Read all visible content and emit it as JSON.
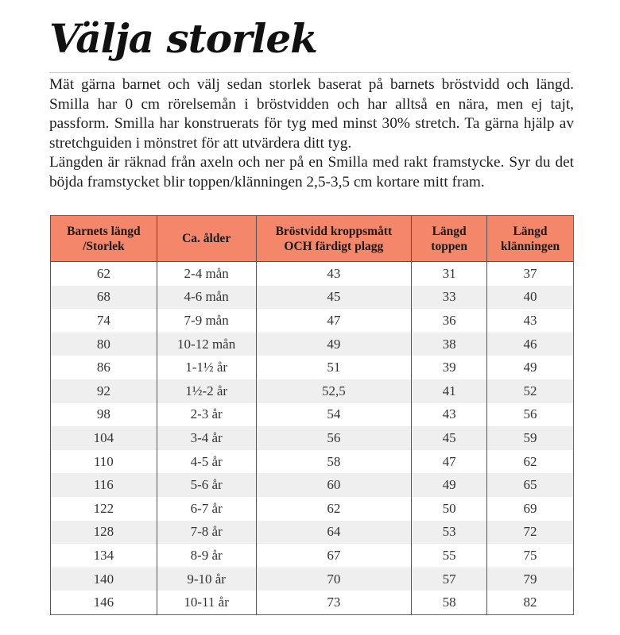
{
  "title": "Välja storlek",
  "intro": [
    "Mät gärna barnet och välj sedan storlek baserat på barnets bröstvidd och längd. Smilla har 0 cm rörelsemån i bröstvidden och har alltså en nära, men ej tajt, passform. Smilla har konstruerats för tyg med minst 30% stretch. Ta gärna hjälp av stretchguiden i mönstret för att utvärdera ditt tyg.",
    "Längden är räknad från axeln och ner på en Smilla med rakt framstycke. Syr du det böjda framstycket blir toppen/klänningen 2,5-3,5 cm kortare mitt fram."
  ],
  "colors": {
    "header_bg": "#f4866a",
    "stripe_bg": "#efefef"
  },
  "table": {
    "headers": [
      [
        "Barnets längd",
        "/Storlek"
      ],
      [
        "Ca. ålder",
        ""
      ],
      [
        "Bröstvidd kroppsmått",
        "OCH färdigt plagg"
      ],
      [
        "Längd",
        "toppen"
      ],
      [
        "Längd",
        "klänningen"
      ]
    ],
    "rows": [
      [
        "62",
        "2-4 mån",
        "43",
        "31",
        "37"
      ],
      [
        "68",
        "4-6 mån",
        "45",
        "33",
        "40"
      ],
      [
        "74",
        "7-9 mån",
        "47",
        "36",
        "43"
      ],
      [
        "80",
        "10-12 mån",
        "49",
        "38",
        "46"
      ],
      [
        "86",
        "1-1½ år",
        "51",
        "39",
        "49"
      ],
      [
        "92",
        "1½-2 år",
        "52,5",
        "41",
        "52"
      ],
      [
        "98",
        "2-3 år",
        "54",
        "43",
        "56"
      ],
      [
        "104",
        "3-4 år",
        "56",
        "45",
        "59"
      ],
      [
        "110",
        "4-5 år",
        "58",
        "47",
        "62"
      ],
      [
        "116",
        "5-6 år",
        "60",
        "49",
        "65"
      ],
      [
        "122",
        "6-7 år",
        "62",
        "50",
        "69"
      ],
      [
        "128",
        "7-8 år",
        "64",
        "53",
        "72"
      ],
      [
        "134",
        "8-9 år",
        "67",
        "55",
        "75"
      ],
      [
        "140",
        "9-10 år",
        "70",
        "57",
        "79"
      ],
      [
        "146",
        "10-11 år",
        "73",
        "58",
        "82"
      ]
    ]
  }
}
